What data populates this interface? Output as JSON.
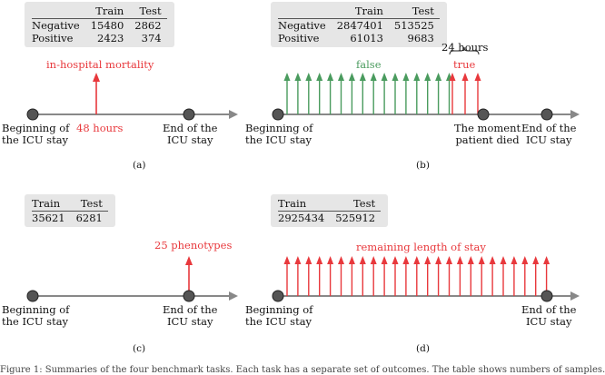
{
  "panels": {
    "a": {
      "caption": "(a)",
      "table": {
        "headers": [
          "",
          "Train",
          "Test"
        ],
        "rows": [
          [
            "Negative",
            "15480",
            "2862"
          ],
          [
            "Positive",
            "2423",
            "374"
          ]
        ]
      },
      "event_label": "in-hospital mortality",
      "time_label": "48 hours",
      "start_label": [
        "Beginning of",
        "the ICU stay"
      ],
      "end_label": [
        "End of the",
        "ICU stay"
      ]
    },
    "b": {
      "caption": "(b)",
      "table": {
        "headers": [
          "",
          "Train",
          "Test"
        ],
        "rows": [
          [
            "Negative",
            "2847401",
            "513525"
          ],
          [
            "Positive",
            "61013",
            "9683"
          ]
        ]
      },
      "false_label": "false",
      "true_label": "true",
      "window_label": "24 hours",
      "start_label": [
        "Beginning of",
        "the ICU stay"
      ],
      "death_label": [
        "The moment",
        "patient died"
      ],
      "end_label": [
        "End of the",
        "ICU stay"
      ]
    },
    "c": {
      "caption": "(c)",
      "table": {
        "headers": [
          "Train",
          "Test"
        ],
        "rows": [
          [
            "35621",
            "6281"
          ]
        ]
      },
      "event_label": "25 phenotypes",
      "start_label": [
        "Beginning of",
        "the ICU stay"
      ],
      "end_label": [
        "End of the",
        "ICU stay"
      ]
    },
    "d": {
      "caption": "(d)",
      "table": {
        "headers": [
          "Train",
          "Test"
        ],
        "rows": [
          [
            "2925434",
            "525912"
          ]
        ]
      },
      "event_label": "remaining length of stay",
      "start_label": [
        "Beginning of",
        "the ICU stay"
      ],
      "end_label": [
        "End of the",
        "ICU stay"
      ]
    }
  },
  "footer": "Figure 1: Summaries of the four benchmark tasks. Each task has a separate set of outcomes. The table shows numbers of samples.",
  "colors": {
    "red": "#e8383c",
    "green": "#4a9b5e",
    "axis": "#888888",
    "node": "#555555",
    "table_bg": "#e6e6e6"
  }
}
